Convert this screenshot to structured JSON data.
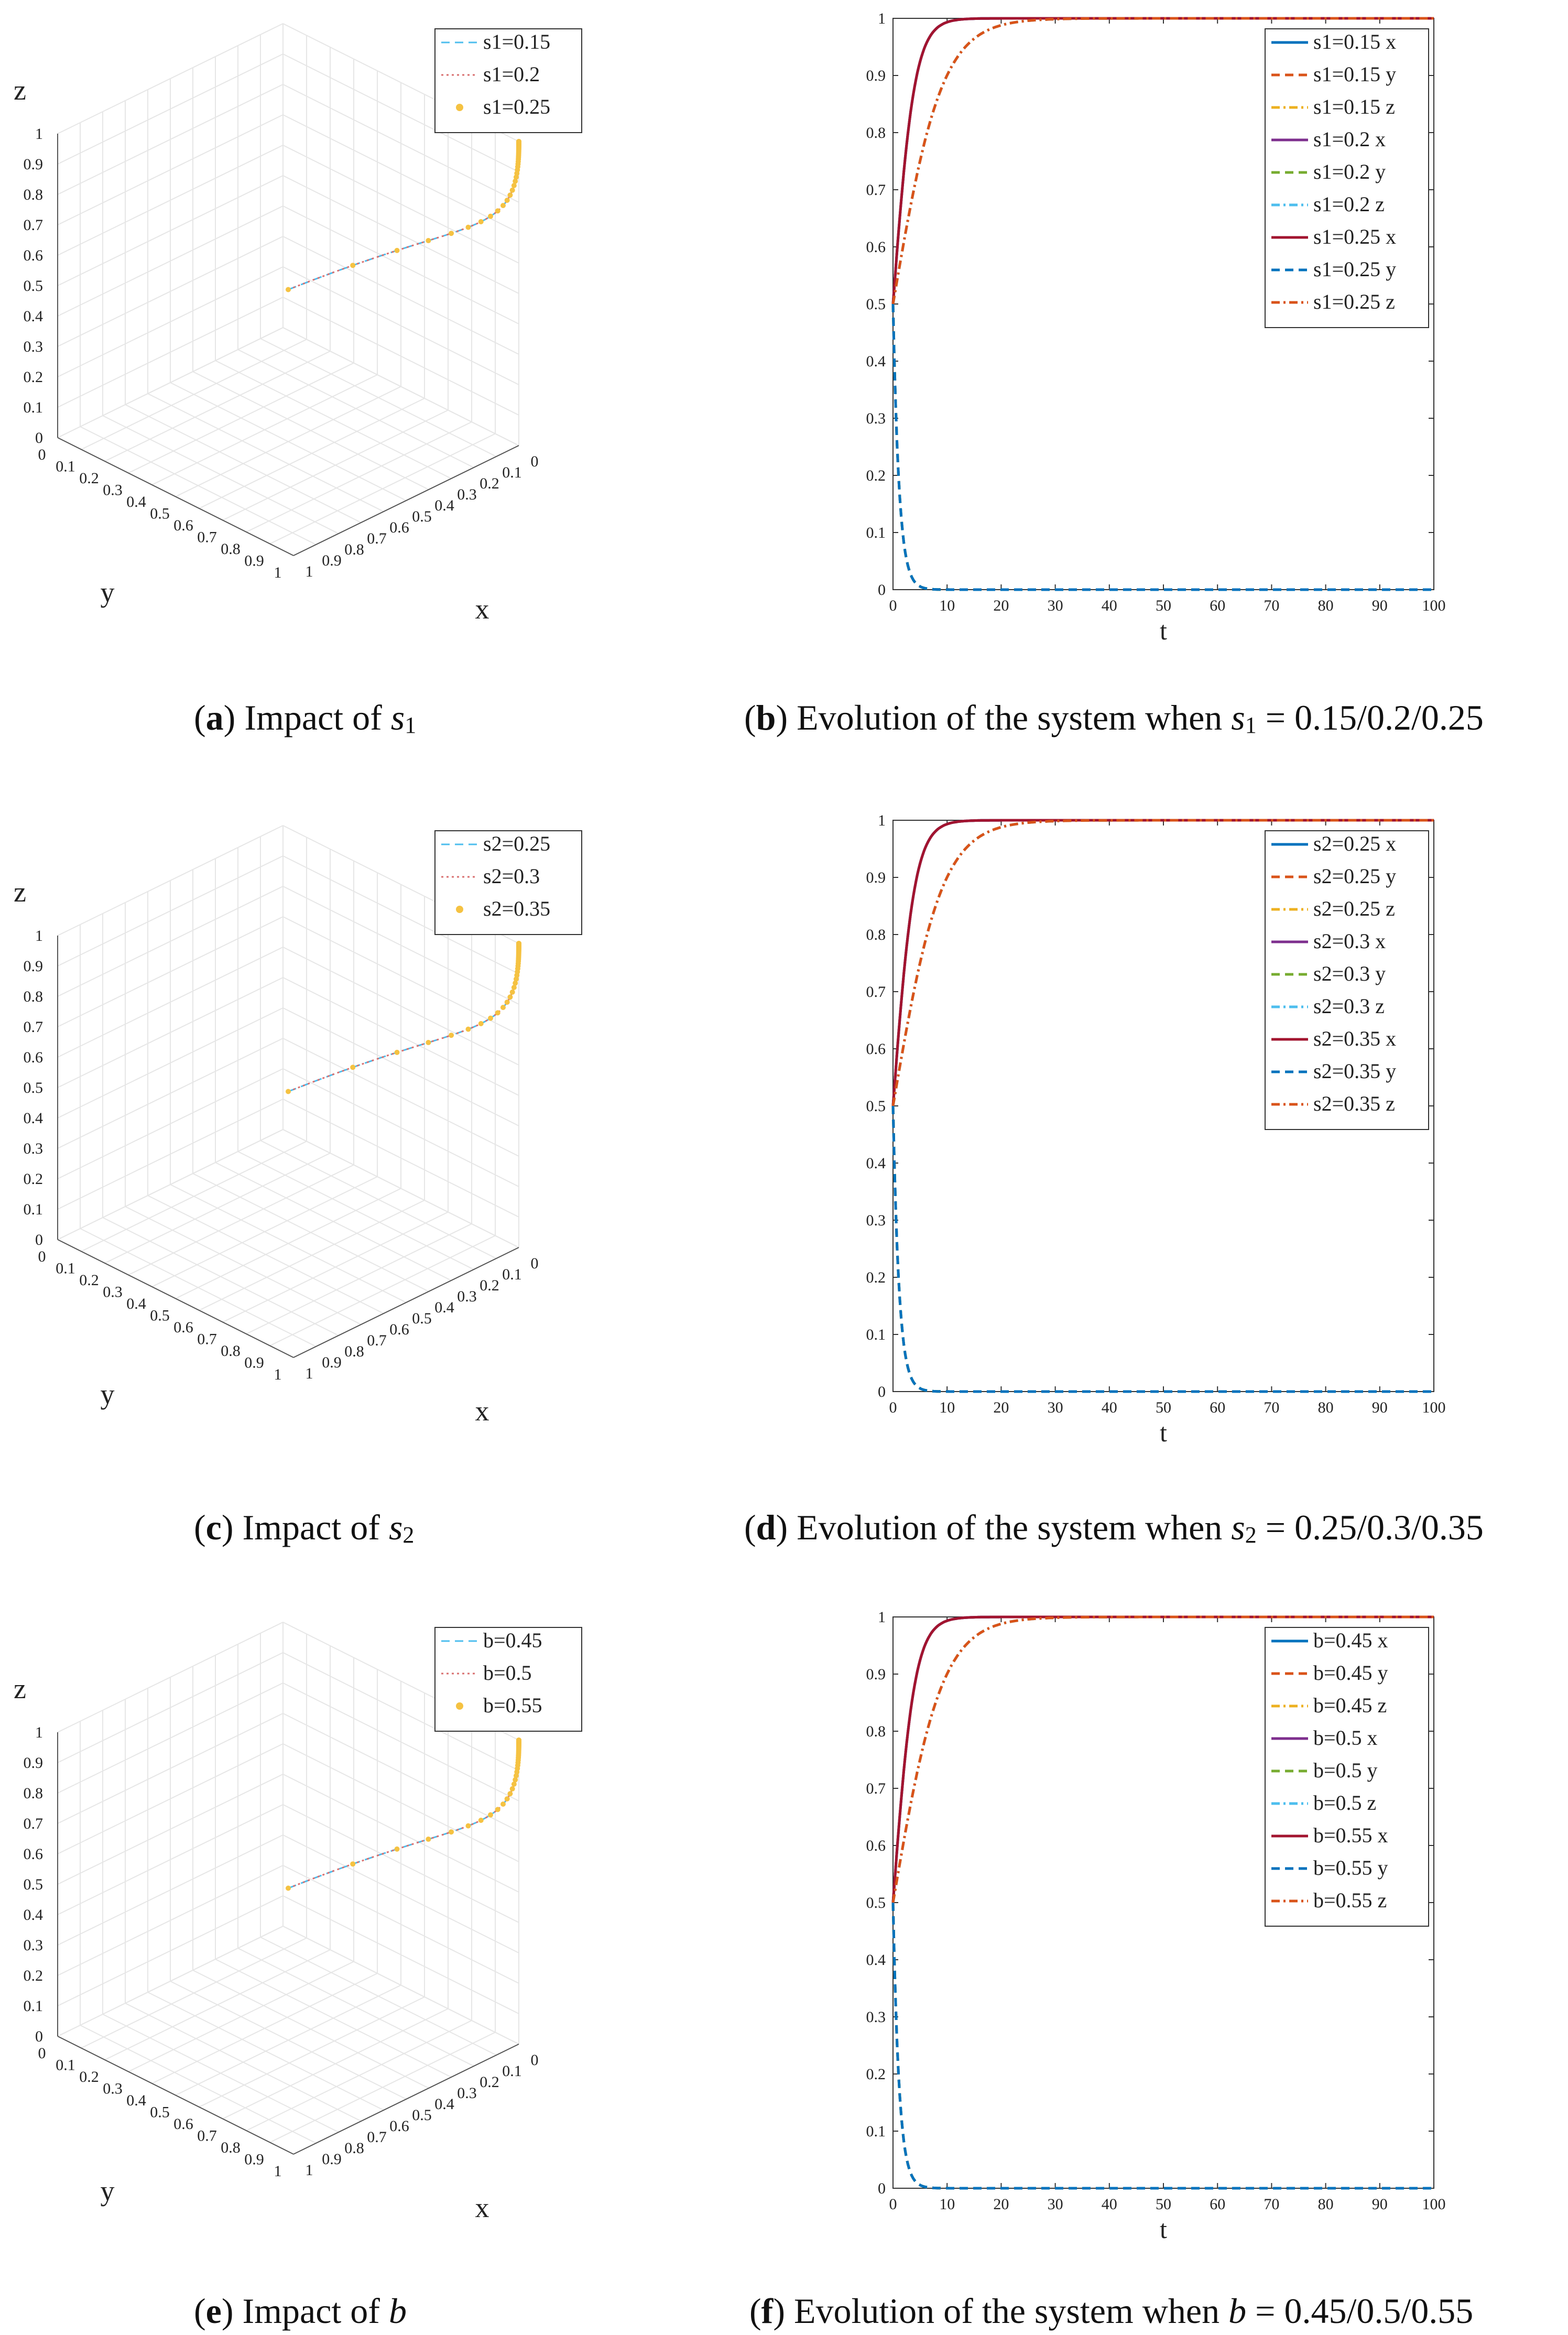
{
  "panels": [
    {
      "id": "a",
      "caption": {
        "letter": "a",
        "text": "Impact of",
        "symbol": "s",
        "sub": "1",
        "tail": ""
      },
      "chart_data": {
        "type": "line3d",
        "title": "",
        "xlabel": "x",
        "ylabel": "y",
        "zlabel": "z",
        "xlim": [
          0,
          1
        ],
        "ylim": [
          0,
          1
        ],
        "zlim": [
          0,
          1
        ],
        "xticks": [
          "0",
          "0.1",
          "0.2",
          "0.3",
          "0.4",
          "0.5",
          "0.6",
          "0.7",
          "0.8",
          "0.9",
          "1"
        ],
        "yticks": [
          "0",
          "0.1",
          "0.2",
          "0.3",
          "0.4",
          "0.5",
          "0.6",
          "0.7",
          "0.8",
          "0.9",
          "1"
        ],
        "zticks": [
          "0",
          "0.1",
          "0.2",
          "0.3",
          "0.4",
          "0.5",
          "0.6",
          "0.7",
          "0.8",
          "0.9",
          "1"
        ],
        "grid": true,
        "legend_position": "top-right",
        "series": [
          {
            "name": "s1=0.15",
            "color": "#4dbeee",
            "style": "dashed",
            "marker": ""
          },
          {
            "name": "s1=0.2",
            "color": "#d97070",
            "style": "dotted",
            "marker": ""
          },
          {
            "name": "s1=0.25",
            "color": "#f5c242",
            "style": "none",
            "marker": "star"
          }
        ]
      }
    },
    {
      "id": "b",
      "caption": {
        "letter": "b",
        "text": "Evolution of the system when",
        "symbol": "s",
        "sub": "1",
        "tail": "= 0.15/0.2/0.25"
      },
      "chart_data": {
        "type": "line",
        "title": "",
        "xlabel": "t",
        "ylabel": "",
        "xlim": [
          0,
          100
        ],
        "ylim": [
          0,
          1
        ],
        "xticks": [
          "0",
          "10",
          "20",
          "30",
          "40",
          "50",
          "60",
          "70",
          "80",
          "90",
          "100"
        ],
        "yticks": [
          "0",
          "0.1",
          "0.2",
          "0.3",
          "0.4",
          "0.5",
          "0.6",
          "0.7",
          "0.8",
          "0.9",
          "1"
        ],
        "grid": false,
        "legend_position": "top-right",
        "x_rate": 0.5,
        "z_rate": 0.22,
        "y_rate": 0.9,
        "series": [
          {
            "name": "s1=0.15 x",
            "color": "#0072bd",
            "style": "solid",
            "var": "x"
          },
          {
            "name": "s1=0.15 y",
            "color": "#d95319",
            "style": "dashed",
            "var": "y"
          },
          {
            "name": "s1=0.15 z",
            "color": "#edb120",
            "style": "dashdot",
            "var": "z"
          },
          {
            "name": "s1=0.2 x",
            "color": "#7e2f8e",
            "style": "solid",
            "var": "x"
          },
          {
            "name": "s1=0.2 y",
            "color": "#77ac30",
            "style": "dashed",
            "var": "y"
          },
          {
            "name": "s1=0.2 z",
            "color": "#4dbeee",
            "style": "dashdot",
            "var": "z"
          },
          {
            "name": "s1=0.25 x",
            "color": "#a2142f",
            "style": "solid",
            "var": "x"
          },
          {
            "name": "s1=0.25 y",
            "color": "#0072bd",
            "style": "dashed",
            "var": "y"
          },
          {
            "name": "s1=0.25 z",
            "color": "#d95319",
            "style": "dashdot",
            "var": "z"
          }
        ]
      }
    },
    {
      "id": "c",
      "caption": {
        "letter": "c",
        "text": "Impact of",
        "symbol": "s",
        "sub": "2",
        "tail": ""
      },
      "chart_data": {
        "type": "line3d",
        "title": "",
        "xlabel": "x",
        "ylabel": "y",
        "zlabel": "z",
        "xlim": [
          0,
          1
        ],
        "ylim": [
          0,
          1
        ],
        "zlim": [
          0,
          1
        ],
        "xticks": [
          "0",
          "0.1",
          "0.2",
          "0.3",
          "0.4",
          "0.5",
          "0.6",
          "0.7",
          "0.8",
          "0.9",
          "1"
        ],
        "yticks": [
          "0",
          "0.1",
          "0.2",
          "0.3",
          "0.4",
          "0.5",
          "0.6",
          "0.7",
          "0.8",
          "0.9",
          "1"
        ],
        "zticks": [
          "0",
          "0.1",
          "0.2",
          "0.3",
          "0.4",
          "0.5",
          "0.6",
          "0.7",
          "0.8",
          "0.9",
          "1"
        ],
        "grid": true,
        "legend_position": "top-right",
        "series": [
          {
            "name": "s2=0.25",
            "color": "#4dbeee",
            "style": "dashed",
            "marker": ""
          },
          {
            "name": "s2=0.3",
            "color": "#d97070",
            "style": "dotted",
            "marker": ""
          },
          {
            "name": "s2=0.35",
            "color": "#f5c242",
            "style": "none",
            "marker": "star"
          }
        ]
      }
    },
    {
      "id": "d",
      "caption": {
        "letter": "d",
        "text": "Evolution of the system when",
        "symbol": "s",
        "sub": "2",
        "tail": "= 0.25/0.3/0.35"
      },
      "chart_data": {
        "type": "line",
        "title": "",
        "xlabel": "t",
        "ylabel": "",
        "xlim": [
          0,
          100
        ],
        "ylim": [
          0,
          1
        ],
        "xticks": [
          "0",
          "10",
          "20",
          "30",
          "40",
          "50",
          "60",
          "70",
          "80",
          "90",
          "100"
        ],
        "yticks": [
          "0",
          "0.1",
          "0.2",
          "0.3",
          "0.4",
          "0.5",
          "0.6",
          "0.7",
          "0.8",
          "0.9",
          "1"
        ],
        "grid": false,
        "legend_position": "top-right",
        "x_rate": 0.5,
        "z_rate": 0.22,
        "y_rate": 0.9,
        "series": [
          {
            "name": "s2=0.25 x",
            "color": "#0072bd",
            "style": "solid",
            "var": "x"
          },
          {
            "name": "s2=0.25 y",
            "color": "#d95319",
            "style": "dashed",
            "var": "y"
          },
          {
            "name": "s2=0.25 z",
            "color": "#edb120",
            "style": "dashdot",
            "var": "z"
          },
          {
            "name": "s2=0.3 x",
            "color": "#7e2f8e",
            "style": "solid",
            "var": "x"
          },
          {
            "name": "s2=0.3 y",
            "color": "#77ac30",
            "style": "dashed",
            "var": "y"
          },
          {
            "name": "s2=0.3 z",
            "color": "#4dbeee",
            "style": "dashdot",
            "var": "z"
          },
          {
            "name": "s2=0.35 x",
            "color": "#a2142f",
            "style": "solid",
            "var": "x"
          },
          {
            "name": "s2=0.35 y",
            "color": "#0072bd",
            "style": "dashed",
            "var": "y"
          },
          {
            "name": "s2=0.35 z",
            "color": "#d95319",
            "style": "dashdot",
            "var": "z"
          }
        ]
      }
    },
    {
      "id": "e",
      "caption": {
        "letter": "e",
        "text": "Impact of",
        "symbol": "b",
        "sub": "",
        "tail": ""
      },
      "chart_data": {
        "type": "line3d",
        "title": "",
        "xlabel": "x",
        "ylabel": "y",
        "zlabel": "z",
        "xlim": [
          0,
          1
        ],
        "ylim": [
          0,
          1
        ],
        "zlim": [
          0,
          1
        ],
        "xticks": [
          "0",
          "0.1",
          "0.2",
          "0.3",
          "0.4",
          "0.5",
          "0.6",
          "0.7",
          "0.8",
          "0.9",
          "1"
        ],
        "yticks": [
          "0",
          "0.1",
          "0.2",
          "0.3",
          "0.4",
          "0.5",
          "0.6",
          "0.7",
          "0.8",
          "0.9",
          "1"
        ],
        "zticks": [
          "0",
          "0.1",
          "0.2",
          "0.3",
          "0.4",
          "0.5",
          "0.6",
          "0.7",
          "0.8",
          "0.9",
          "1"
        ],
        "grid": true,
        "legend_position": "top-right",
        "series": [
          {
            "name": "b=0.45",
            "color": "#4dbeee",
            "style": "dashed",
            "marker": ""
          },
          {
            "name": "b=0.5",
            "color": "#d97070",
            "style": "dotted",
            "marker": ""
          },
          {
            "name": "b=0.55",
            "color": "#f5c242",
            "style": "none",
            "marker": "star"
          }
        ]
      }
    },
    {
      "id": "f",
      "caption": {
        "letter": "f",
        "text": "Evolution of the system when",
        "symbol": "b",
        "sub": "",
        "tail": "= 0.45/0.5/0.55"
      },
      "chart_data": {
        "type": "line",
        "title": "",
        "xlabel": "t",
        "ylabel": "",
        "xlim": [
          0,
          100
        ],
        "ylim": [
          0,
          1
        ],
        "xticks": [
          "0",
          "10",
          "20",
          "30",
          "40",
          "50",
          "60",
          "70",
          "80",
          "90",
          "100"
        ],
        "yticks": [
          "0",
          "0.1",
          "0.2",
          "0.3",
          "0.4",
          "0.5",
          "0.6",
          "0.7",
          "0.8",
          "0.9",
          "1"
        ],
        "grid": false,
        "legend_position": "top-right",
        "x_rate": 0.5,
        "z_rate": 0.22,
        "y_rate": 0.9,
        "series": [
          {
            "name": "b=0.45 x",
            "color": "#0072bd",
            "style": "solid",
            "var": "x"
          },
          {
            "name": "b=0.45 y",
            "color": "#d95319",
            "style": "dashed",
            "var": "y"
          },
          {
            "name": "b=0.45 z",
            "color": "#edb120",
            "style": "dashdot",
            "var": "z"
          },
          {
            "name": "b=0.5 x",
            "color": "#7e2f8e",
            "style": "solid",
            "var": "x"
          },
          {
            "name": "b=0.5 y",
            "color": "#77ac30",
            "style": "dashed",
            "var": "y"
          },
          {
            "name": "b=0.5 z",
            "color": "#4dbeee",
            "style": "dashdot",
            "var": "z"
          },
          {
            "name": "b=0.55 x",
            "color": "#a2142f",
            "style": "solid",
            "var": "x"
          },
          {
            "name": "b=0.55 y",
            "color": "#0072bd",
            "style": "dashed",
            "var": "y"
          },
          {
            "name": "b=0.55 z",
            "color": "#d95319",
            "style": "dashdot",
            "var": "z"
          }
        ]
      }
    }
  ]
}
